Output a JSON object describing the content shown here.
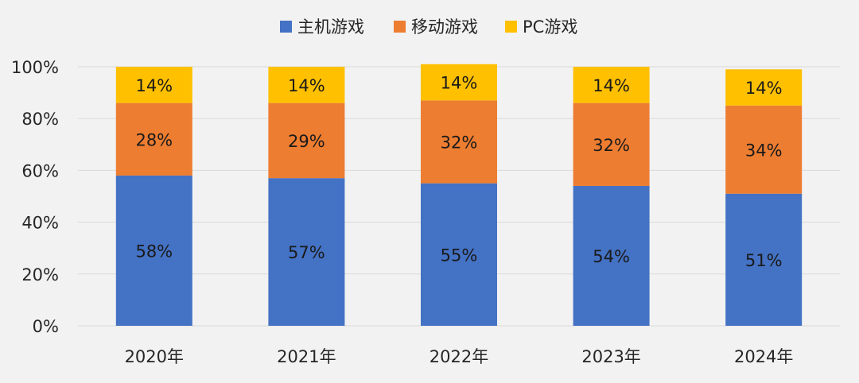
{
  "chart_data": {
    "type": "bar",
    "stacked": true,
    "categories": [
      "2020年",
      "2021年",
      "2022年",
      "2023年",
      "2024年"
    ],
    "series": [
      {
        "name": "主机游戏",
        "color": "#4472c4",
        "values": [
          58,
          57,
          55,
          54,
          51
        ]
      },
      {
        "name": "移动游戏",
        "color": "#ed7d31",
        "values": [
          28,
          29,
          32,
          32,
          34
        ]
      },
      {
        "name": "PC游戏",
        "color": "#ffc000",
        "values": [
          14,
          14,
          14,
          14,
          14
        ]
      }
    ],
    "data_labels": [
      [
        "58%",
        "57%",
        "55%",
        "54%",
        "51%"
      ],
      [
        "28%",
        "29%",
        "32%",
        "32%",
        "34%"
      ],
      [
        "14%",
        "14%",
        "14%",
        "14%",
        "14%"
      ]
    ],
    "y_ticks": [
      "0%",
      "20%",
      "40%",
      "60%",
      "80%",
      "100%"
    ],
    "ylim": [
      0,
      100
    ],
    "grid": true,
    "legend_position": "top-center",
    "title": "",
    "xlabel": "",
    "ylabel": ""
  }
}
